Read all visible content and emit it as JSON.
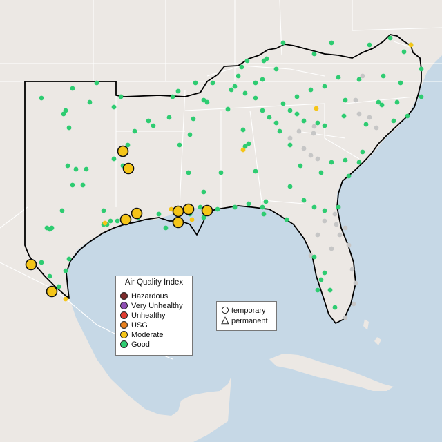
{
  "legend": {
    "title": "Air Quality Index",
    "categories": [
      {
        "label": "Hazardous",
        "color": "#7e2b2b"
      },
      {
        "label": "Very Unhealthy",
        "color": "#8f4fb3"
      },
      {
        "label": "Unhealthy",
        "color": "#e03c31"
      },
      {
        "label": "USG",
        "color": "#e8801e"
      },
      {
        "label": "Moderate",
        "color": "#f5c518"
      },
      {
        "label": "Good",
        "color": "#2ecc71"
      }
    ]
  },
  "shape_legend": {
    "temporary": "temporary",
    "permanent": "permanent"
  },
  "colors": {
    "water": "#c6d8e6",
    "land": "#ece8e4",
    "border": "#ffffff",
    "region_outline": "#000000",
    "no_data": "#c6c6c6"
  }
}
